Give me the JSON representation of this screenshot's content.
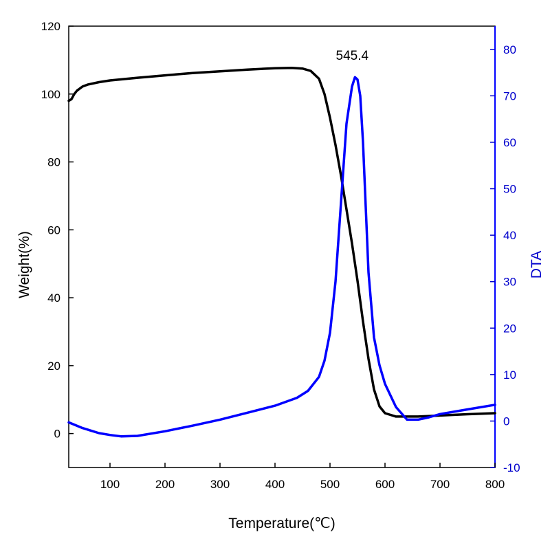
{
  "chart_data": {
    "type": "line",
    "title": "",
    "xlabel": "Temperature(℃)",
    "ylabel_left": "Weight(%)",
    "ylabel_right": "DTA",
    "xlim": [
      25,
      800
    ],
    "ylim_left": [
      -10,
      120
    ],
    "ylim_right": [
      -10,
      85
    ],
    "xticks": [
      100,
      200,
      300,
      400,
      500,
      600,
      700,
      800
    ],
    "yticks_left": [
      0,
      20,
      40,
      60,
      80,
      100,
      120
    ],
    "yticks_right": [
      -10,
      0,
      10,
      20,
      30,
      40,
      50,
      60,
      70,
      80
    ],
    "grid": false,
    "annotations": [
      {
        "text": "545.4",
        "x": 545.4,
        "y": 76,
        "axis": "right"
      }
    ],
    "colors": {
      "weight": "#000000",
      "dta": "#0000ff",
      "right_axis": "#0000cc"
    },
    "series": [
      {
        "name": "Weight",
        "axis": "left",
        "color": "#000000",
        "x": [
          25,
          30,
          35,
          40,
          50,
          60,
          80,
          100,
          150,
          200,
          250,
          300,
          350,
          400,
          430,
          450,
          465,
          480,
          490,
          500,
          510,
          520,
          530,
          540,
          550,
          560,
          570,
          580,
          590,
          600,
          620,
          640,
          660,
          700,
          750,
          800
        ],
        "y": [
          98,
          98.5,
          100,
          101,
          102.2,
          102.8,
          103.5,
          104,
          104.8,
          105.5,
          106.2,
          106.7,
          107.2,
          107.6,
          107.7,
          107.5,
          106.8,
          104.5,
          100,
          93,
          85,
          76,
          66,
          56,
          45,
          33,
          22,
          13,
          8,
          6,
          5,
          5,
          5,
          5.3,
          5.7,
          6
        ]
      },
      {
        "name": "DTA",
        "axis": "right",
        "color": "#0000ff",
        "x": [
          25,
          50,
          80,
          100,
          120,
          150,
          200,
          250,
          300,
          350,
          400,
          440,
          460,
          480,
          490,
          500,
          510,
          520,
          530,
          540,
          545.4,
          550,
          555,
          560,
          565,
          570,
          580,
          590,
          600,
          620,
          640,
          650,
          660,
          680,
          700,
          750,
          800
        ],
        "y": [
          -0.3,
          -1.5,
          -2.6,
          -3,
          -3.3,
          -3.2,
          -2.2,
          -1,
          0.3,
          1.8,
          3.3,
          5,
          6.5,
          9.5,
          13,
          19,
          30,
          47,
          64,
          72,
          74,
          73.5,
          70,
          60,
          46,
          32,
          18,
          12,
          8,
          3,
          0.3,
          0.3,
          0.3,
          0.8,
          1.5,
          2.5,
          3.5
        ]
      }
    ]
  }
}
